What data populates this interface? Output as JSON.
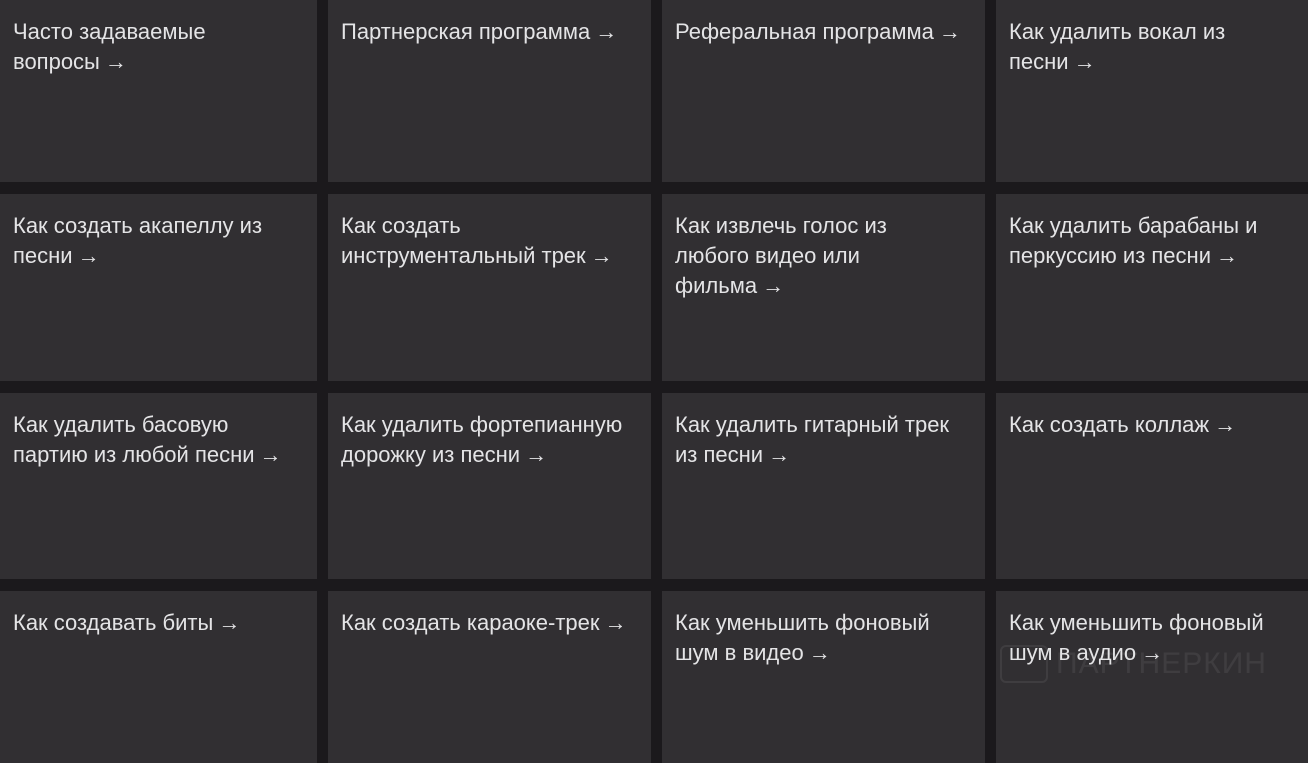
{
  "arrow": "→",
  "tiles": [
    {
      "label": "Часто задаваемые вопросы"
    },
    {
      "label": "Партнерская программа"
    },
    {
      "label": "Реферальная программа"
    },
    {
      "label": "Как удалить вокал из песни"
    },
    {
      "label": "Как создать акапеллу из песни"
    },
    {
      "label": "Как создать инструментальный трек"
    },
    {
      "label": "Как извлечь голос из любого видео или фильма"
    },
    {
      "label": "Как удалить барабаны и перкуссию из песни"
    },
    {
      "label": "Как удалить басовую партию из любой песни"
    },
    {
      "label": "Как удалить фортепианную дорожку из песни"
    },
    {
      "label": "Как удалить гитарный трек из песни"
    },
    {
      "label": "Как создать коллаж"
    },
    {
      "label": "Как создавать биты"
    },
    {
      "label": "Как создать караоке-трек"
    },
    {
      "label": "Как уменьшить фоновый шум в видео"
    },
    {
      "label": "Как уменьшить фоновый шум в аудио"
    }
  ],
  "watermark": "ПАРТНЕРКИН"
}
